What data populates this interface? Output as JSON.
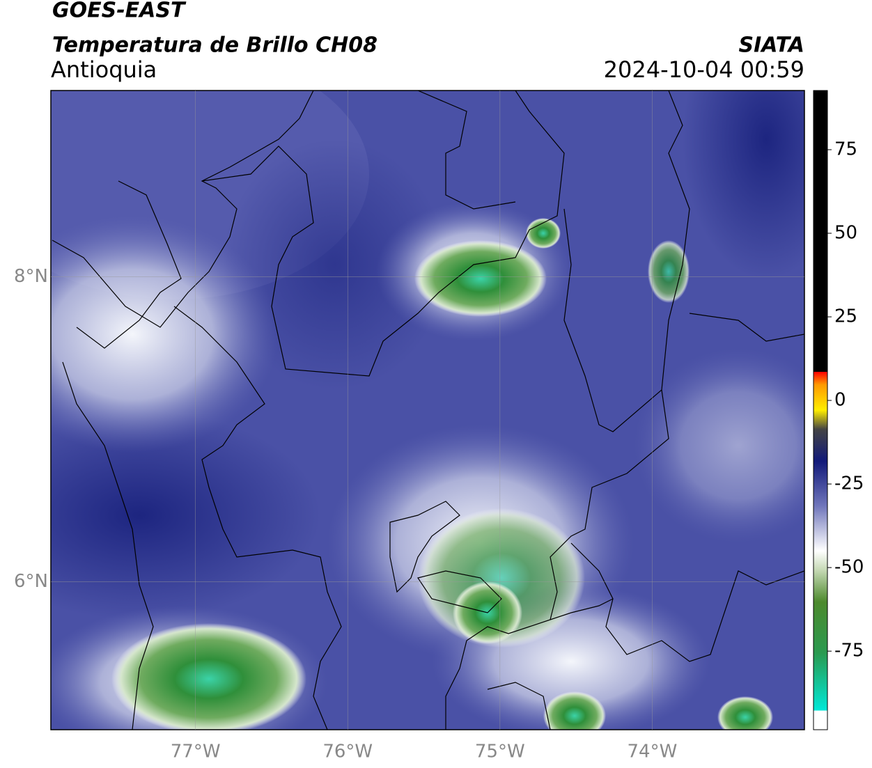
{
  "header": {
    "title": "GOES-EAST",
    "subtitle": "Temperatura de Brillo CH08",
    "region": "Antioquia",
    "brand": "SIATA",
    "datetime": "2024-10-04 00:59"
  },
  "map": {
    "xlim": [
      -77.95,
      -73.0
    ],
    "ylim": [
      5.03,
      9.22
    ],
    "xticks": [
      {
        "value": -77,
        "label": "77°W"
      },
      {
        "value": -76,
        "label": "76°W"
      },
      {
        "value": -75,
        "label": "75°W"
      },
      {
        "value": -74,
        "label": "74°W"
      }
    ],
    "yticks": [
      {
        "value": 6,
        "label": "6°N"
      },
      {
        "value": 8,
        "label": "8°N"
      }
    ],
    "grid": true
  },
  "colorbar": {
    "lim": [
      -98.5,
      92.7
    ],
    "ticks": [
      75,
      50,
      25,
      0,
      -25,
      -50,
      -75
    ]
  }
}
